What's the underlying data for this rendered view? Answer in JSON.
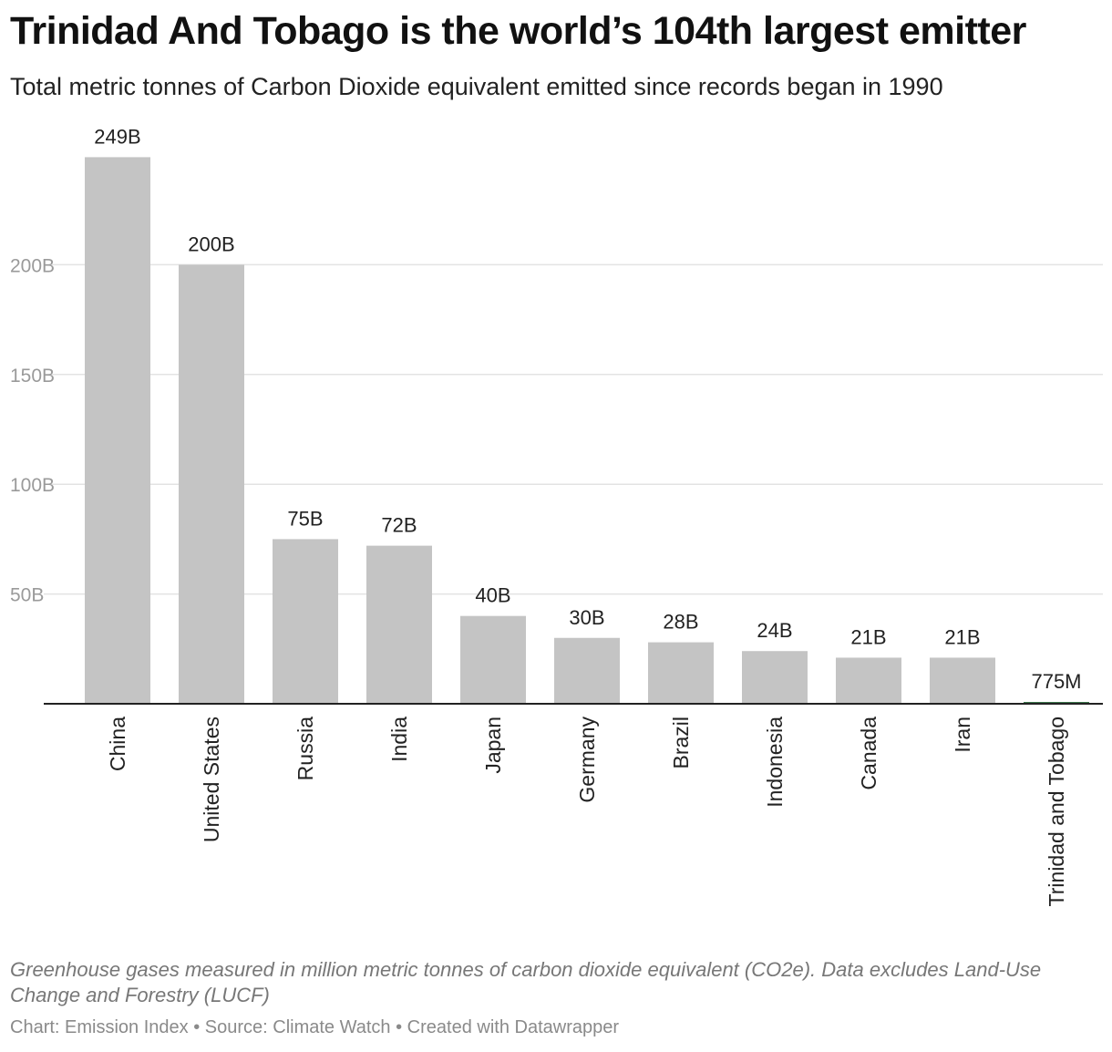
{
  "header": {
    "title": "Trinidad And Tobago is the world’s 104th largest emitter",
    "subtitle": "Total metric tonnes of Carbon Dioxide equivalent emitted since records began in 1990"
  },
  "chart_data": {
    "type": "bar",
    "categories": [
      "China",
      "United States",
      "Russia",
      "India",
      "Japan",
      "Germany",
      "Brazil",
      "Indonesia",
      "Canada",
      "Iran",
      "Trinidad and Tobago"
    ],
    "values": [
      249,
      200,
      75,
      72,
      40,
      30,
      28,
      24,
      21,
      21,
      0.775
    ],
    "value_labels": [
      "249B",
      "200B",
      "75B",
      "72B",
      "40B",
      "30B",
      "28B",
      "24B",
      "21B",
      "21B",
      "775M"
    ],
    "y_ticks": [
      50,
      100,
      150,
      200
    ],
    "y_tick_labels": [
      "50B",
      "100B",
      "150B",
      "200B"
    ],
    "ylim": [
      0,
      250
    ],
    "unit": "billion metric tonnes CO2e",
    "grid": true,
    "colors": {
      "bar": "#c4c4c4",
      "highlight": "#1f5f2e",
      "grid": "#e3e3e3",
      "axis": "#222222",
      "tick_label": "#9a9a9a"
    },
    "highlight_index": 10
  },
  "footer": {
    "note": "Greenhouse gases measured in million metric tonnes of carbon dioxide equivalent (CO2e). Data excludes Land-Use Change and Forestry (LUCF)",
    "credit_chart": "Chart: Emission Index",
    "separator": " • ",
    "credit_source": "Source: Climate Watch",
    "credit_tool": "Created with Datawrapper"
  }
}
